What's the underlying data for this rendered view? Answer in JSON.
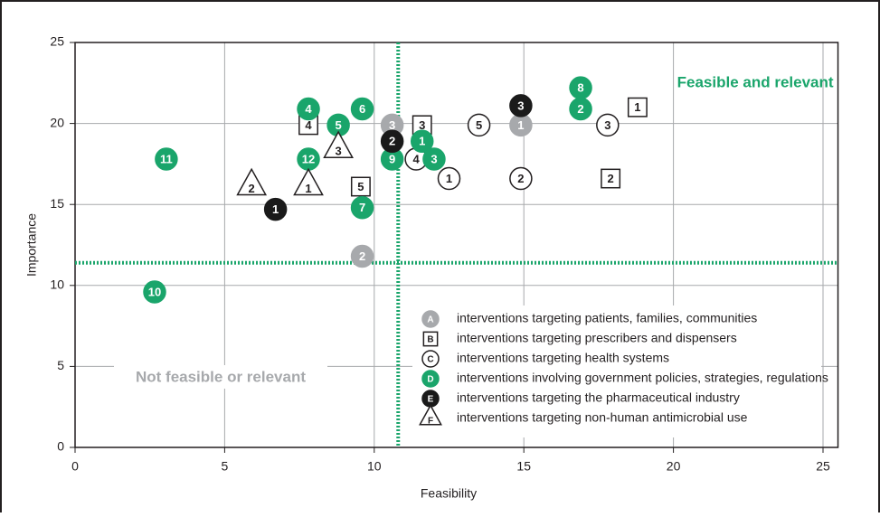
{
  "chart_data": {
    "type": "scatter",
    "x_label": "Feasibility",
    "y_label": "Importance",
    "xlim": [
      0,
      25.5
    ],
    "ylim": [
      0,
      25
    ],
    "xticks": [
      0,
      5,
      10,
      15,
      20,
      25
    ],
    "yticks": [
      0,
      5,
      10,
      15,
      20,
      25
    ],
    "grid": true,
    "thresholds": {
      "x": 10.8,
      "y": 11.4,
      "color": "#1aa56b"
    },
    "annotations": [
      {
        "text": "Feasible and relevant",
        "color": "#1aa56b"
      },
      {
        "text": "Not feasible or relevant",
        "color": "#a7a9ac"
      }
    ],
    "series": [
      {
        "key": "A",
        "name": "interventions targeting patients, families, communities",
        "shape": "circle",
        "color": "#a7a9ac",
        "labels": [
          "3",
          "1",
          "2"
        ],
        "x": [
          10.6,
          14.9,
          9.6
        ],
        "y": [
          19.9,
          19.9,
          11.8
        ]
      },
      {
        "key": "B",
        "name": "interventions targeting prescribers and dispensers",
        "shape": "square",
        "color": "#ffffff",
        "labels": [
          "4",
          "3",
          "1",
          "5",
          "2"
        ],
        "x": [
          7.8,
          11.6,
          18.8,
          9.55,
          17.9
        ],
        "y": [
          19.9,
          19.9,
          21.0,
          16.1,
          16.6
        ]
      },
      {
        "key": "C",
        "name": "interventions targeting health systems",
        "shape": "circle",
        "color": "#ffffff",
        "labels": [
          "5",
          "3",
          "4",
          "1",
          "2"
        ],
        "x": [
          13.5,
          17.8,
          11.4,
          12.5,
          14.9
        ],
        "y": [
          19.9,
          19.9,
          17.8,
          16.6,
          16.6
        ]
      },
      {
        "key": "D",
        "name": "interventions involving government policies, strategies, regulations",
        "shape": "circle",
        "color": "#1aa56b",
        "labels": [
          "4",
          "5",
          "6",
          "8",
          "2",
          "1",
          "9",
          "3",
          "11",
          "12",
          "7",
          "10"
        ],
        "x": [
          7.8,
          8.8,
          9.6,
          16.9,
          16.9,
          11.6,
          10.6,
          12.0,
          3.05,
          7.8,
          9.6,
          2.66
        ],
        "y": [
          20.9,
          19.9,
          20.9,
          22.2,
          20.9,
          18.9,
          17.8,
          17.8,
          17.8,
          17.8,
          14.8,
          9.6
        ]
      },
      {
        "key": "E",
        "name": "interventions targeting the pharmaceutical industry",
        "shape": "circle",
        "color": "#1a1a1a",
        "labels": [
          "3",
          "2",
          "1"
        ],
        "x": [
          14.9,
          10.6,
          6.7
        ],
        "y": [
          21.1,
          18.9,
          14.7
        ]
      },
      {
        "key": "F",
        "name": "interventions targeting non-human antimicrobial use",
        "shape": "triangle",
        "color": "#ffffff",
        "labels": [
          "3",
          "2",
          "1"
        ],
        "x": [
          8.8,
          5.9,
          7.8
        ],
        "y": [
          18.4,
          16.1,
          16.1
        ]
      }
    ]
  }
}
